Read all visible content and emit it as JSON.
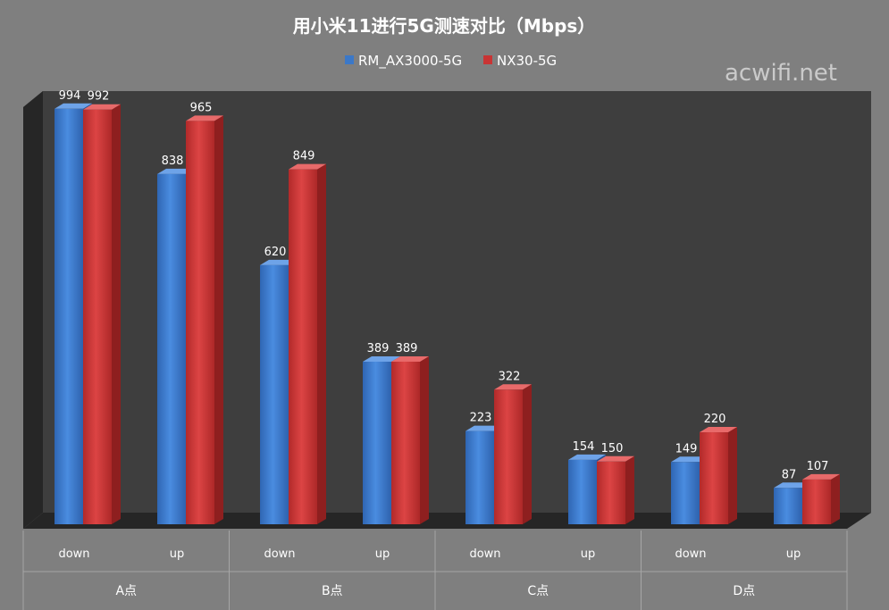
{
  "chart_data": {
    "type": "bar",
    "title": "用小米11进行5G测速对比（Mbps）",
    "watermark": "acwifi.net",
    "groups": [
      "A点",
      "B点",
      "C点",
      "D点"
    ],
    "categories": [
      "down",
      "up",
      "down",
      "up",
      "down",
      "up",
      "down",
      "up"
    ],
    "series": [
      {
        "name": "RM_AX3000-5G",
        "color": "#3b78c8",
        "values": [
          994,
          838,
          620,
          389,
          223,
          154,
          149,
          87
        ]
      },
      {
        "name": "NX30-5G",
        "color": "#c93434",
        "values": [
          992,
          965,
          849,
          389,
          322,
          150,
          220,
          107
        ]
      }
    ],
    "ylim": [
      0,
      1000
    ],
    "grid": false,
    "legend_position": "top-center",
    "style": {
      "plot_wall": "#3e3e3e",
      "plot_floor": "#2a2a2a",
      "side_wall": "#2b2b2b",
      "background": "#7f7f7f",
      "table_line": "#a6a6a6"
    }
  }
}
